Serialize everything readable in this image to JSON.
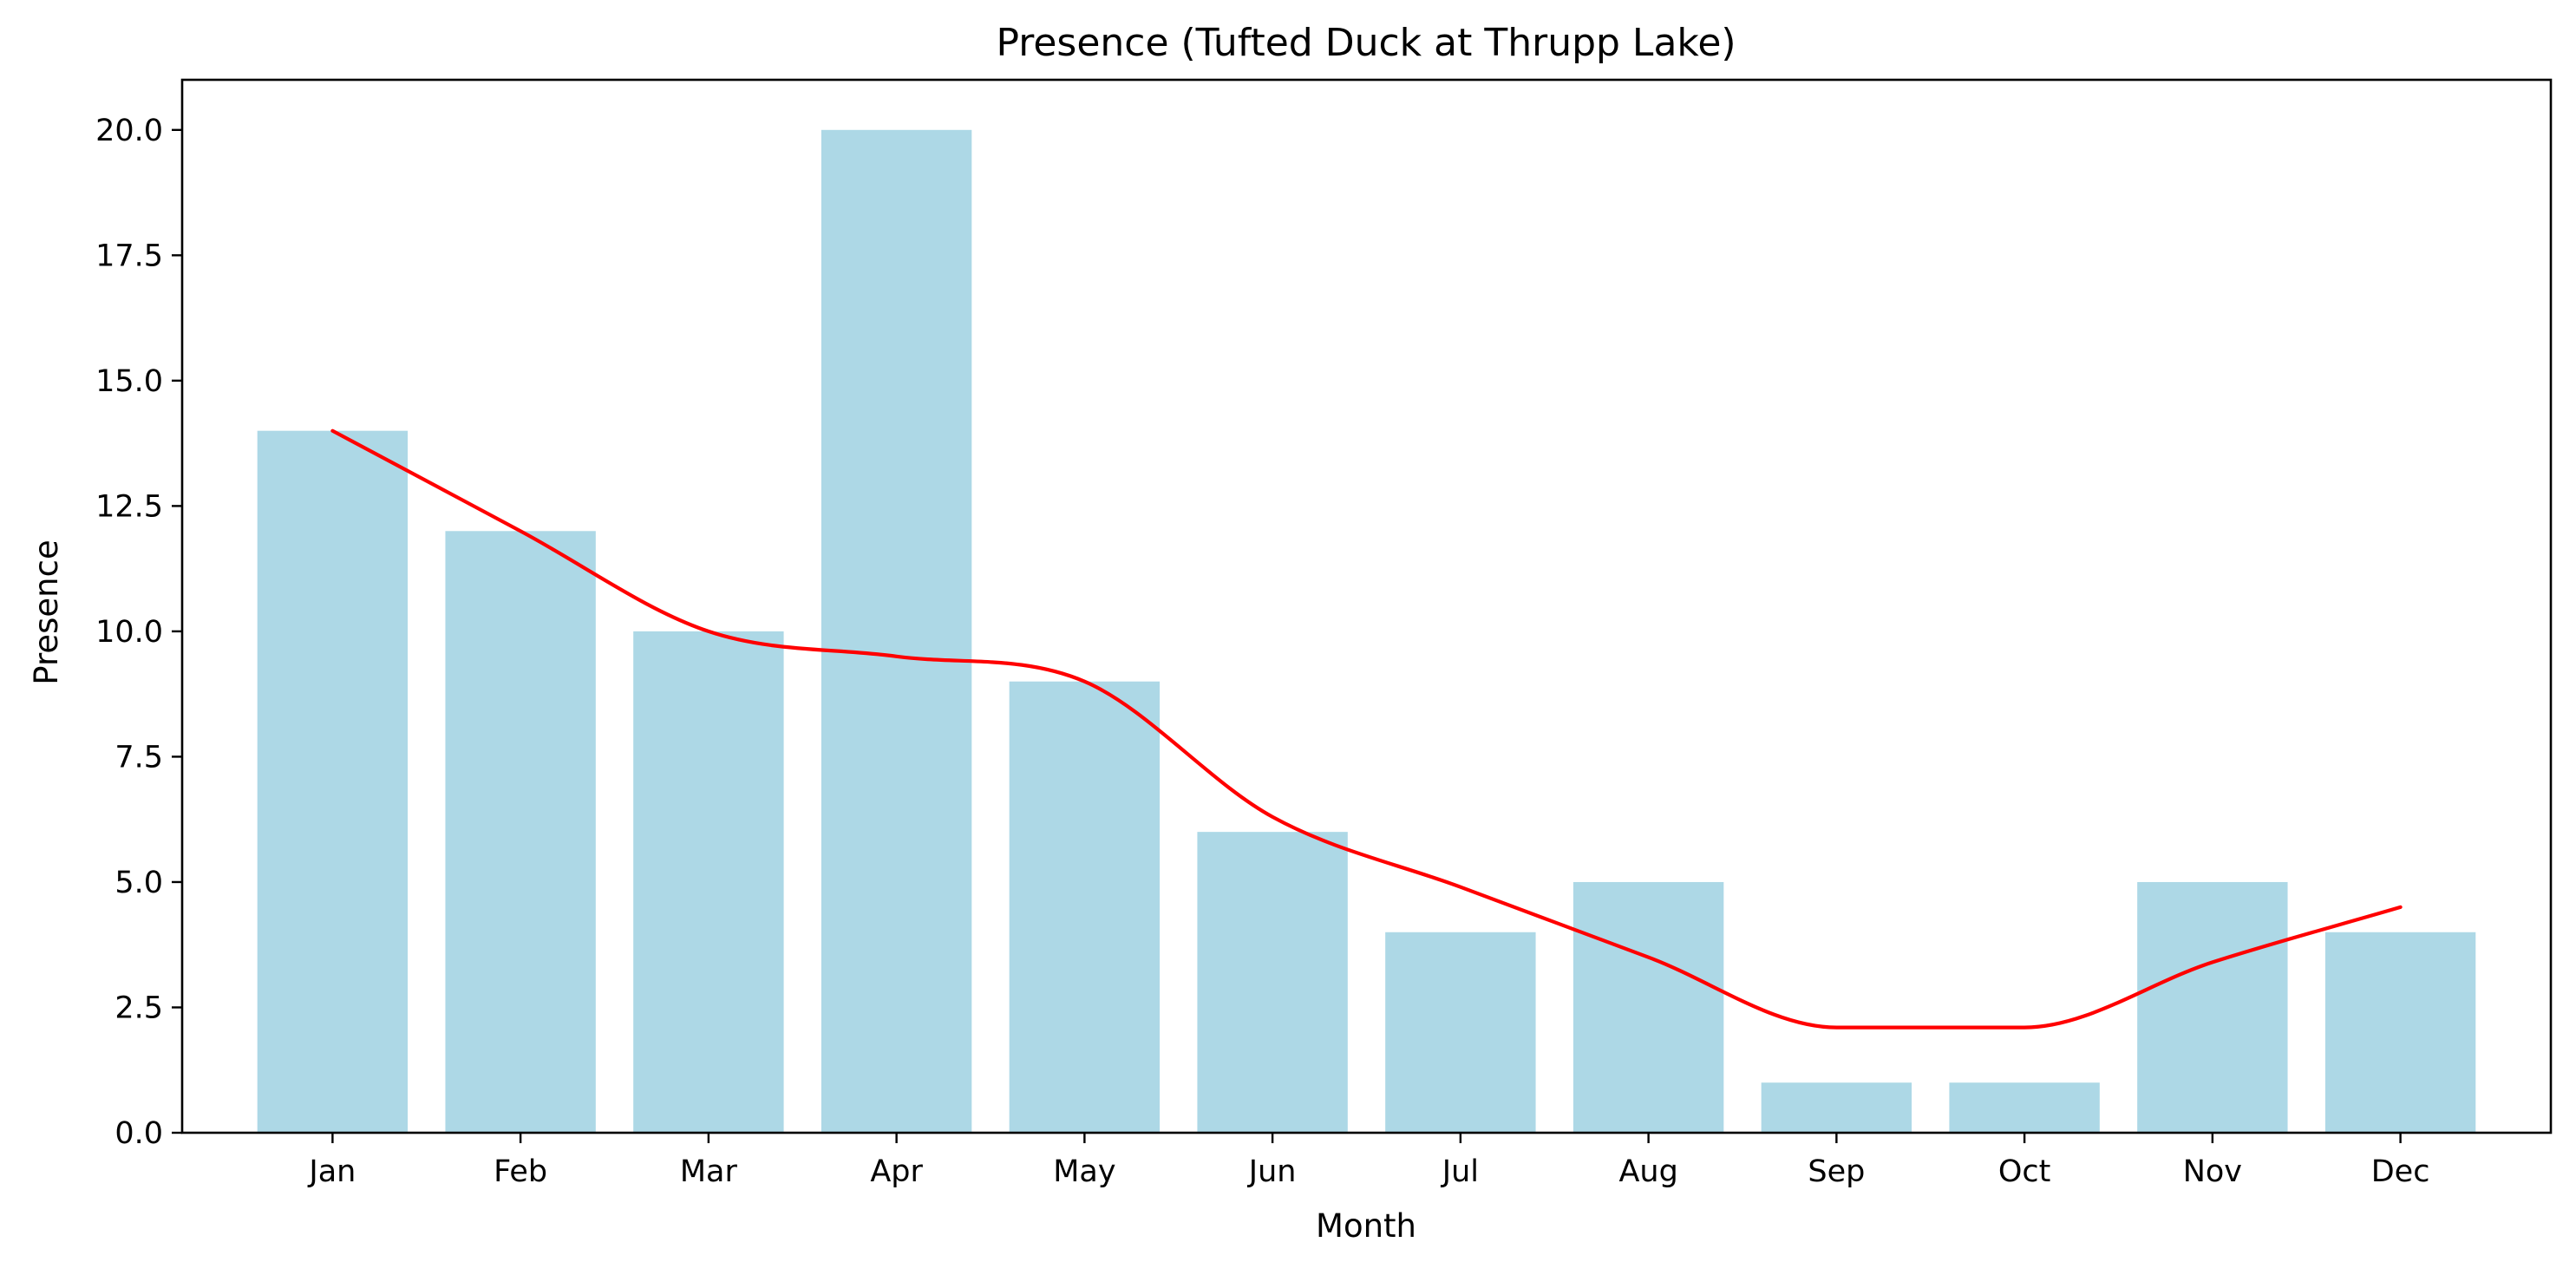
{
  "chart_data": {
    "type": "bar",
    "title": "Presence (Tufted Duck at Thrupp Lake)",
    "xlabel": "Month",
    "ylabel": "Presence",
    "categories": [
      "Jan",
      "Feb",
      "Mar",
      "Apr",
      "May",
      "Jun",
      "Jul",
      "Aug",
      "Sep",
      "Oct",
      "Nov",
      "Dec"
    ],
    "series": [
      {
        "type": "bar",
        "values": [
          14,
          12,
          10,
          20,
          9,
          6,
          4,
          5,
          1,
          1,
          5,
          4
        ],
        "color": "#add8e6"
      },
      {
        "type": "line",
        "values": [
          14,
          12,
          10,
          9.5,
          9,
          6.3,
          4.9,
          3.5,
          2.1,
          2.1,
          3.4,
          4.5
        ],
        "color": "#ff0000"
      }
    ],
    "ylim": [
      0,
      21
    ],
    "yticks": [
      0,
      2.5,
      5,
      7.5,
      10,
      12.5,
      15,
      17.5,
      20
    ],
    "ytick_labels": [
      "0.0",
      "2.5",
      "5.0",
      "7.5",
      "10.0",
      "12.5",
      "15.0",
      "17.5",
      "20.0"
    ],
    "grid": false,
    "legend": "none"
  }
}
